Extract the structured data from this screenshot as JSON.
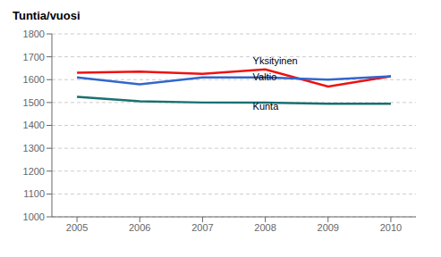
{
  "chart_data": {
    "type": "line",
    "title": "Tuntia/vuosi",
    "x": [
      2005,
      2006,
      2007,
      2008,
      2009,
      2010
    ],
    "series": [
      {
        "name": "Yksityinen",
        "color": "#ee1111",
        "values": [
          1630,
          1635,
          1625,
          1645,
          1570,
          1615
        ]
      },
      {
        "name": "Valtio",
        "color": "#3366cc",
        "values": [
          1610,
          1580,
          1610,
          1610,
          1600,
          1615
        ]
      },
      {
        "name": "Kunta",
        "color": "#1a7070",
        "values": [
          1525,
          1505,
          1500,
          1500,
          1495,
          1495
        ]
      }
    ],
    "xlim": [
      2004.6,
      2010.4
    ],
    "xticks": [
      2005,
      2006,
      2007,
      2008,
      2009,
      2010
    ],
    "ylim": [
      1000,
      1800
    ],
    "yticks": [
      1000,
      1100,
      1200,
      1300,
      1400,
      1500,
      1600,
      1700,
      1800
    ],
    "grid": true,
    "annotations": [
      {
        "text": "Yksityinen",
        "x": 2007.8,
        "y": 1655
      },
      {
        "text": "Valtio",
        "x": 2007.8,
        "y": 1587
      },
      {
        "text": "Kunta",
        "x": 2007.8,
        "y": 1455
      }
    ]
  }
}
